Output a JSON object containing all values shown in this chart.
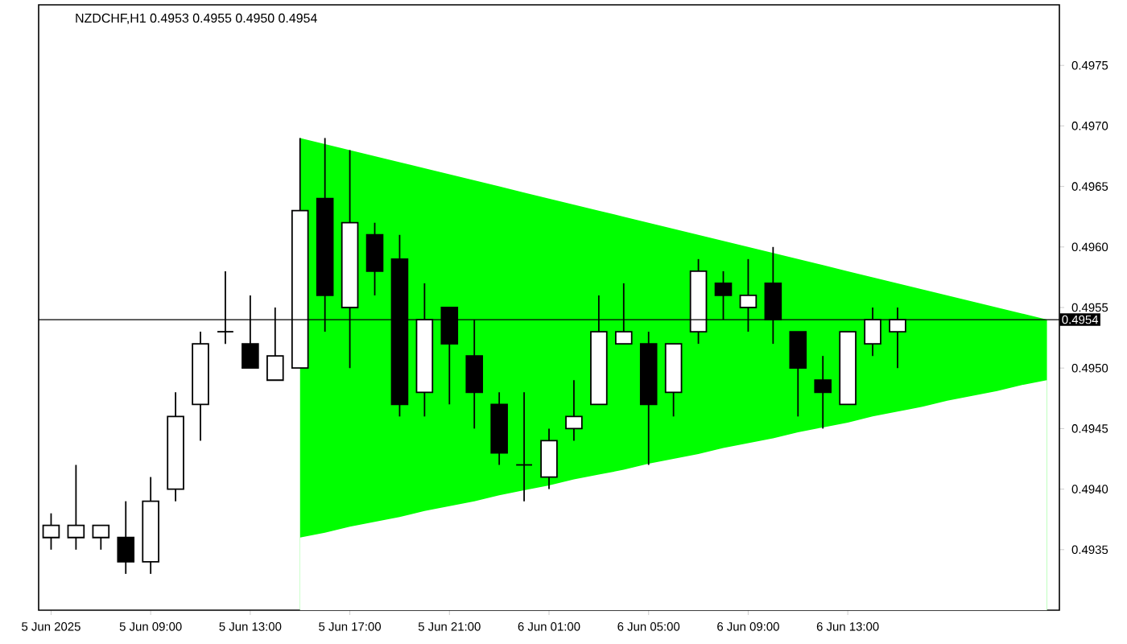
{
  "chart_data": {
    "type": "candlestick",
    "title": "NZDCHF,H1  0.4953 0.4955 0.4950 0.4954",
    "categories": [
      "5 Jun 2025",
      null,
      null,
      null,
      "5 Jun 09:00",
      null,
      null,
      null,
      "5 Jun 13:00",
      null,
      null,
      null,
      "5 Jun 17:00",
      null,
      null,
      null,
      "5 Jun 21:00",
      null,
      null,
      null,
      "6 Jun 01:00",
      null,
      null,
      null,
      "6 Jun 05:00",
      null,
      null,
      null,
      "6 Jun 09:00",
      null,
      null,
      null,
      "6 Jun 13:00",
      null,
      null,
      null,
      null,
      null,
      null,
      null,
      null
    ],
    "ohlc": [
      [
        0.4936,
        0.4938,
        0.4935,
        0.4937
      ],
      [
        0.4936,
        0.4942,
        0.4935,
        0.4937
      ],
      [
        0.4936,
        0.4937,
        0.4935,
        0.4937
      ],
      [
        0.4936,
        0.4939,
        0.4933,
        0.4934
      ],
      [
        0.4934,
        0.4941,
        0.4933,
        0.4939
      ],
      [
        0.494,
        0.4948,
        0.4939,
        0.4946
      ],
      [
        0.4947,
        0.4953,
        0.4944,
        0.4952
      ],
      [
        0.4953,
        0.4958,
        0.4952,
        0.4953
      ],
      [
        0.4952,
        0.4956,
        0.495,
        0.495
      ],
      [
        0.4949,
        0.4955,
        0.4949,
        0.4951
      ],
      [
        0.495,
        0.4969,
        0.495,
        0.4963
      ],
      [
        0.4964,
        0.4969,
        0.4953,
        0.4956
      ],
      [
        0.4955,
        0.4968,
        0.495,
        0.4962
      ],
      [
        0.4961,
        0.4962,
        0.4956,
        0.4958
      ],
      [
        0.4959,
        0.4961,
        0.4946,
        0.4947
      ],
      [
        0.4948,
        0.4957,
        0.4946,
        0.4954
      ],
      [
        0.4955,
        0.4955,
        0.4947,
        0.4952
      ],
      [
        0.4951,
        0.4954,
        0.4945,
        0.4948
      ],
      [
        0.4947,
        0.4948,
        0.4942,
        0.4943
      ],
      [
        0.4942,
        0.4948,
        0.4939,
        0.4942
      ],
      [
        0.4941,
        0.4945,
        0.494,
        0.4944
      ],
      [
        0.4945,
        0.4949,
        0.4944,
        0.4946
      ],
      [
        0.4947,
        0.4956,
        0.4947,
        0.4953
      ],
      [
        0.4952,
        0.4957,
        0.4952,
        0.4953
      ],
      [
        0.4952,
        0.4953,
        0.4942,
        0.4947
      ],
      [
        0.4948,
        0.4952,
        0.4946,
        0.4952
      ],
      [
        0.4953,
        0.4959,
        0.4952,
        0.4958
      ],
      [
        0.4957,
        0.4958,
        0.4954,
        0.4956
      ],
      [
        0.4955,
        0.4959,
        0.4953,
        0.4956
      ],
      [
        0.4957,
        0.496,
        0.4952,
        0.4954
      ],
      [
        0.4953,
        0.4953,
        0.4946,
        0.495
      ],
      [
        0.4949,
        0.4951,
        0.4945,
        0.4948
      ],
      [
        0.4947,
        0.4953,
        0.4947,
        0.4953
      ],
      [
        0.4952,
        0.4955,
        0.4951,
        0.4954
      ],
      [
        0.4953,
        0.4955,
        0.495,
        0.4954
      ],
      null,
      null,
      null,
      null,
      null,
      null
    ],
    "series": [
      {
        "type": "area",
        "color": "#00ff00",
        "values": [
          null,
          null,
          null,
          null,
          null,
          null,
          null,
          null,
          null,
          null,
          0.4969,
          0.49685,
          0.4968,
          0.49675,
          0.4967,
          0.49665,
          0.4966,
          0.49655,
          0.4965,
          0.49645,
          0.4964,
          0.49635,
          0.4963,
          0.49625,
          0.4962,
          0.49615,
          0.4961,
          0.49605,
          0.496,
          0.49595,
          0.4959,
          0.49585,
          0.4958,
          0.49575,
          0.4957,
          0.49565,
          0.4956,
          0.49555,
          0.4955,
          0.49545,
          0.4954
        ]
      },
      {
        "type": "area",
        "color": "#ffffff",
        "values": [
          null,
          null,
          null,
          null,
          null,
          null,
          null,
          null,
          null,
          null,
          0.4936,
          0.49364,
          0.49369,
          0.49373,
          0.49377,
          0.49382,
          0.49386,
          0.4939,
          0.49395,
          0.49399,
          0.49403,
          0.49408,
          0.49412,
          0.49416,
          0.49421,
          0.49425,
          0.49429,
          0.49434,
          0.49438,
          0.49442,
          0.49447,
          0.49451,
          0.49455,
          0.4946,
          0.49464,
          0.49468,
          0.49473,
          0.49477,
          0.49481,
          0.49486,
          0.4949
        ]
      }
    ],
    "ylim": [
      0.493,
      0.498
    ],
    "yticks": [
      0.4935,
      {
        "value": 0.494,
        "label": "0.4940"
      },
      0.4945,
      {
        "value": 0.495,
        "label": "0.4950"
      },
      0.4955,
      {
        "value": 0.496,
        "label": "0.4960"
      },
      0.4965,
      {
        "value": 0.497,
        "label": "0.4970"
      },
      0.4975
    ],
    "ref_lines": [
      {
        "axis": "y",
        "value": 0.4954,
        "label": "0.4954",
        "color": "#000000"
      }
    ],
    "grid": false
  }
}
